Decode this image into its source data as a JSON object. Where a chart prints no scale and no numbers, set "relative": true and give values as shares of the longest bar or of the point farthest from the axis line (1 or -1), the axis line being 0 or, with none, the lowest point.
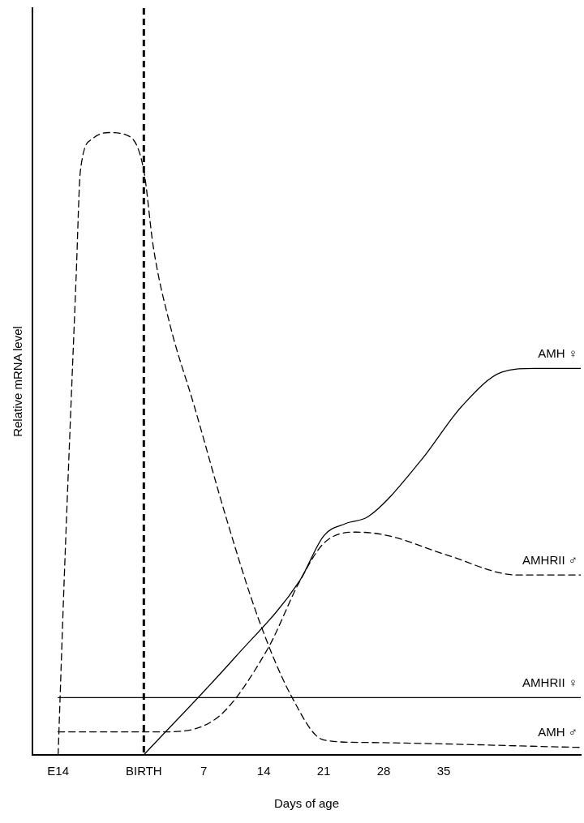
{
  "chart_data": {
    "type": "line",
    "xlabel": "Days of age",
    "ylabel": "Relative mRNA level",
    "relative": true,
    "grid": false,
    "legend": false,
    "marker": "none",
    "xlim": [
      -13,
      51
    ],
    "xticks": [
      {
        "value": -10,
        "label": "E14"
      },
      {
        "value": 0,
        "label": "BIRTH"
      },
      7,
      14,
      21,
      28,
      35
    ],
    "ref_lines": [
      {
        "axis": "x",
        "value": 0,
        "label": null,
        "color": "#000000",
        "line_style": "dashed"
      }
    ],
    "series": [
      {
        "name": "AMH ♀",
        "color": "#000000",
        "line_style": "solid",
        "x": [
          0,
          10.6,
          18.2,
          21,
          23.6,
          26.2,
          32.4,
          37.1,
          41.8,
          45.6,
          51
        ],
        "values": [
          0,
          0.156,
          0.28,
          0.352,
          0.372,
          0.383,
          0.474,
          0.56,
          0.615,
          0.621,
          0.621
        ]
      },
      {
        "name": "AMHRII ♂",
        "color": "#000000",
        "line_style": "dashed",
        "x": [
          -10,
          2.1,
          8.2,
          14.4,
          18.2,
          21,
          24.8,
          28.6,
          35.2,
          43.7,
          51
        ],
        "values": [
          0.037,
          0.037,
          0.056,
          0.169,
          0.279,
          0.34,
          0.358,
          0.352,
          0.322,
          0.289,
          0.289
        ]
      },
      {
        "name": "AMHRII ♀",
        "color": "#000000",
        "line_style": "solid",
        "x": [
          -10,
          51
        ],
        "values": [
          0.092,
          0.092
        ]
      },
      {
        "name": "AMH ♂",
        "color": "#000000",
        "line_style": "dashed",
        "x": [
          -10,
          -9.3,
          -7.9,
          -7.4,
          -6,
          -4.1,
          -1.7,
          0,
          1.1,
          3,
          5.9,
          9.7,
          13.4,
          17.2,
          21,
          25.7,
          51
        ],
        "values": [
          0,
          0.279,
          0.768,
          0.939,
          0.99,
          1,
          0.994,
          0.939,
          0.817,
          0.694,
          0.56,
          0.377,
          0.218,
          0.095,
          0.024,
          0.02,
          0.012
        ]
      }
    ]
  }
}
